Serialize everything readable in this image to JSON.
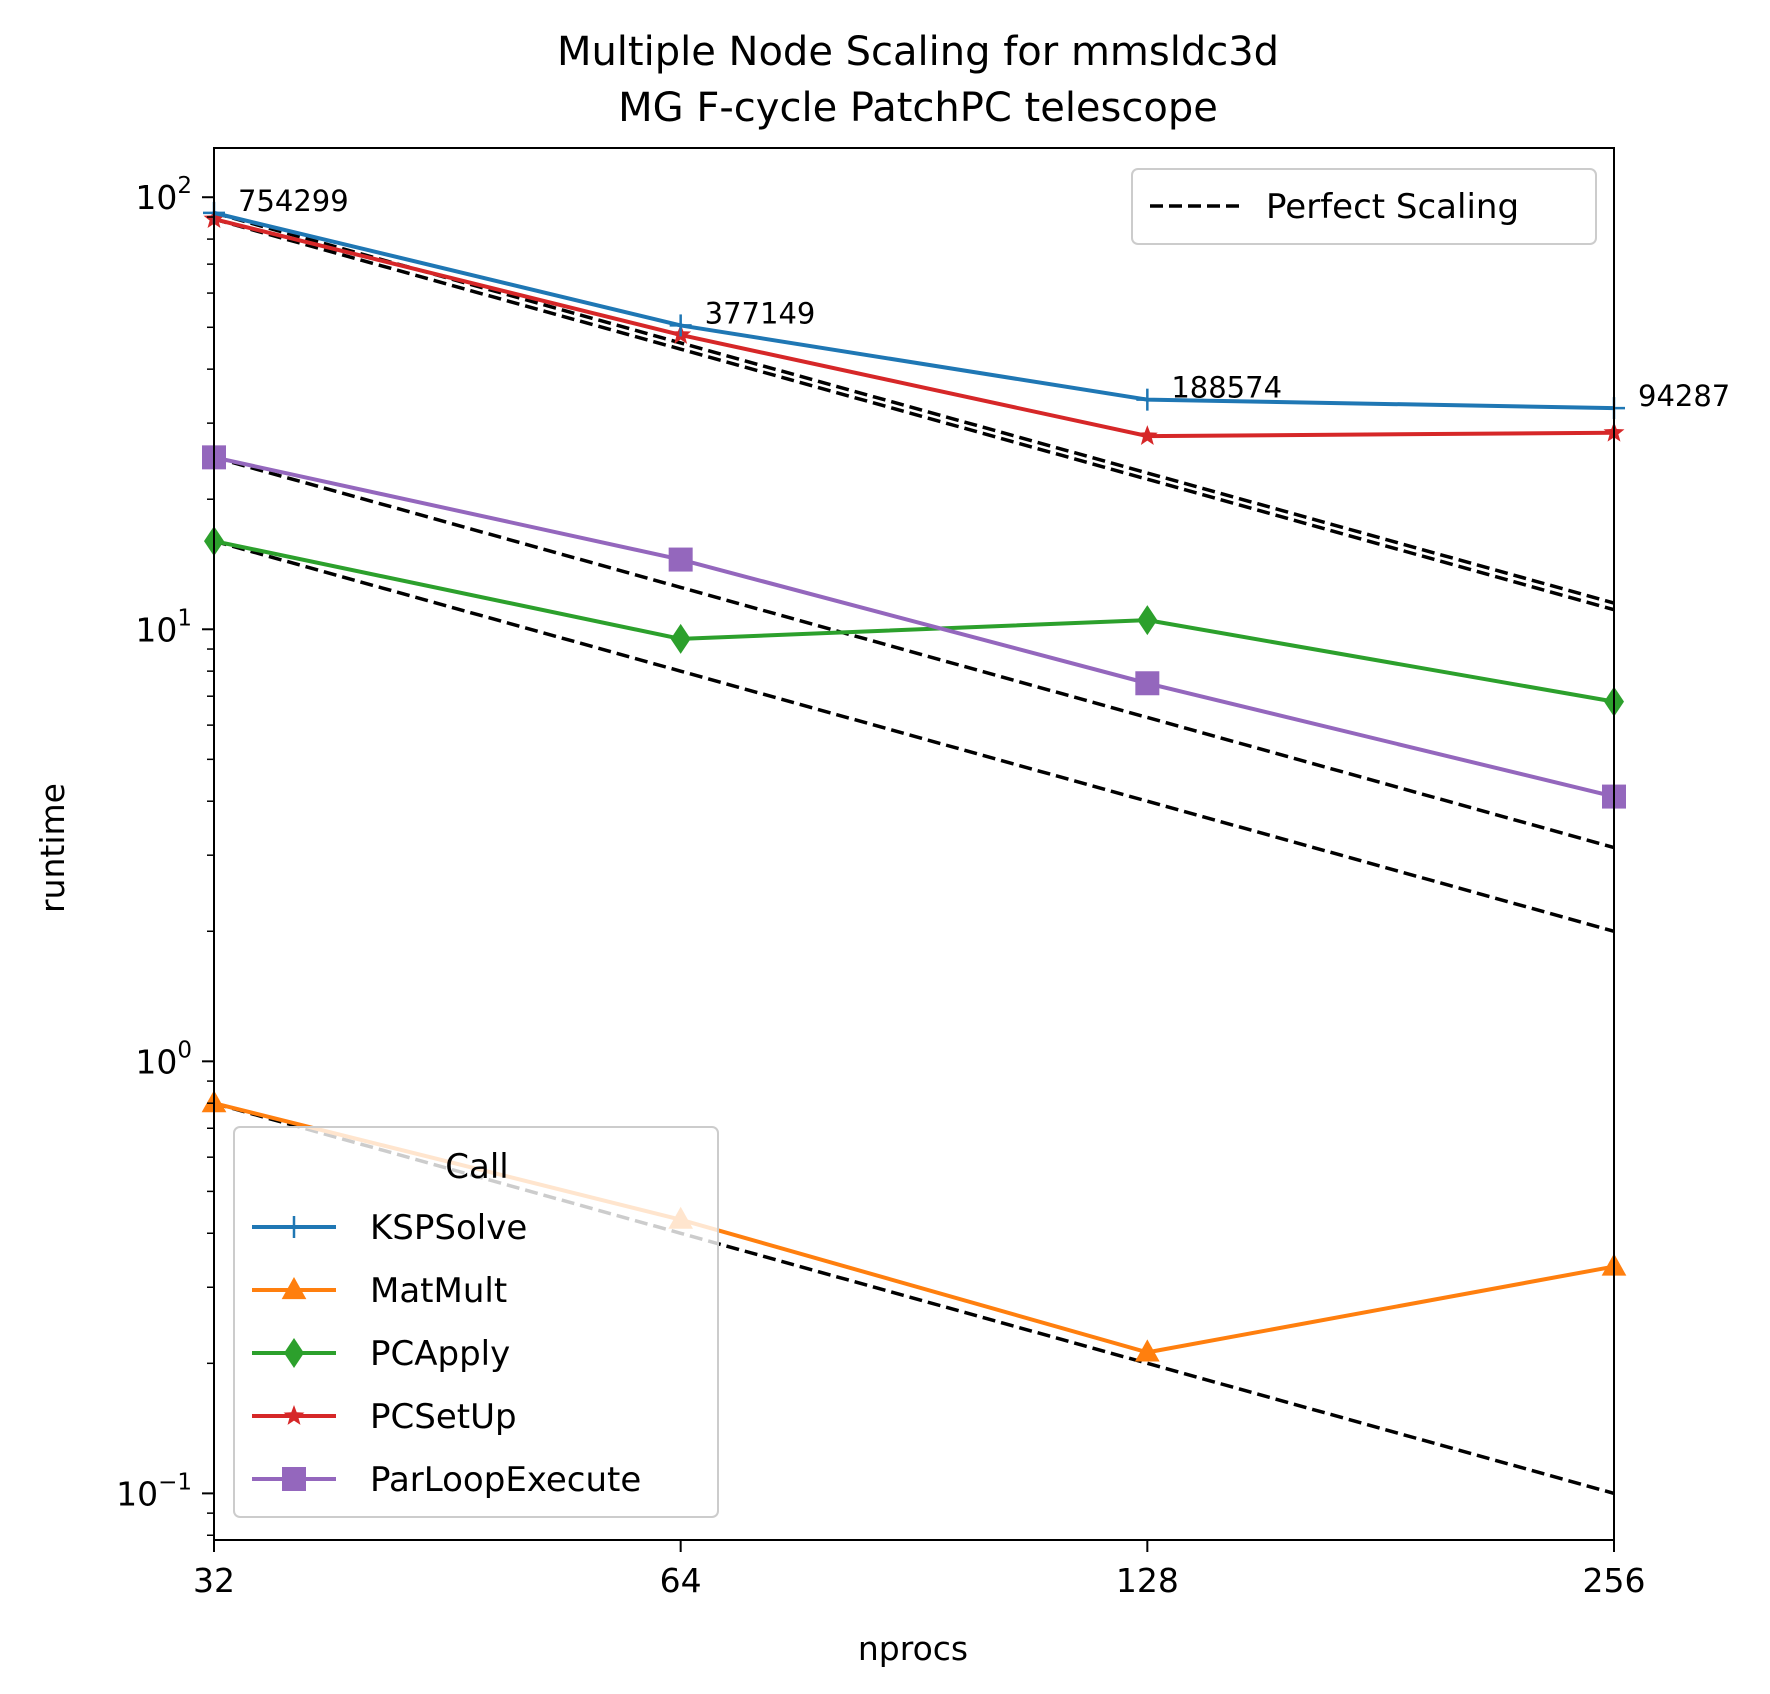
{
  "chart_data": {
    "type": "line",
    "title_line1": "Multiple Node Scaling for mmsldc3d",
    "title_line2": "MG F-cycle PatchPC telescope",
    "xlabel": "nprocs",
    "ylabel": "runtime",
    "xscale": "log2",
    "yscale": "log",
    "x": [
      32,
      64,
      128,
      256
    ],
    "x_tick_labels": [
      "32",
      "64",
      "128",
      "256"
    ],
    "y_tick_base": "10",
    "y_tick_exponents": [
      "−1",
      "0",
      "1",
      "2"
    ],
    "ylim": [
      0.078,
      130
    ],
    "grid": false,
    "series": [
      {
        "name": "KSPSolve",
        "color": "#1f77b4",
        "marker": "plus",
        "values": [
          92,
          50.5,
          34,
          32.5
        ]
      },
      {
        "name": "MatMult",
        "color": "#ff7f0e",
        "marker": "triangle",
        "values": [
          0.8,
          0.43,
          0.212,
          0.335
        ]
      },
      {
        "name": "PCApply",
        "color": "#2ca02c",
        "marker": "diamond",
        "values": [
          16,
          9.5,
          10.5,
          6.8
        ]
      },
      {
        "name": "PCSetUp",
        "color": "#d62728",
        "marker": "star",
        "values": [
          89,
          48,
          28,
          28.5
        ]
      },
      {
        "name": "ParLoopExecute",
        "color": "#9467bd",
        "marker": "square",
        "values": [
          25,
          14.5,
          7.5,
          4.1
        ]
      }
    ],
    "perfect_scaling": {
      "label": "Perfect Scaling",
      "color": "#000000",
      "lines": [
        {
          "start": 92,
          "values": [
            92,
            46,
            23,
            11.5
          ]
        },
        {
          "start": 89,
          "values": [
            89,
            44.5,
            22.25,
            11.1
          ]
        },
        {
          "start": 25,
          "values": [
            25,
            12.5,
            6.25,
            3.125
          ]
        },
        {
          "start": 16,
          "values": [
            16,
            8,
            4,
            2
          ]
        },
        {
          "start": 0.8,
          "values": [
            0.8,
            0.4,
            0.2,
            0.1
          ]
        }
      ]
    },
    "annotations": [
      {
        "text": "754299",
        "x": 32,
        "y": 92
      },
      {
        "text": "377149",
        "x": 64,
        "y": 50.5
      },
      {
        "text": "188574",
        "x": 128,
        "y": 34
      },
      {
        "text": "94287",
        "x": 256,
        "y": 32.5
      }
    ],
    "legend_title": "Call",
    "legend_position": "lower-left",
    "perfect_legend_position": "upper-right"
  }
}
